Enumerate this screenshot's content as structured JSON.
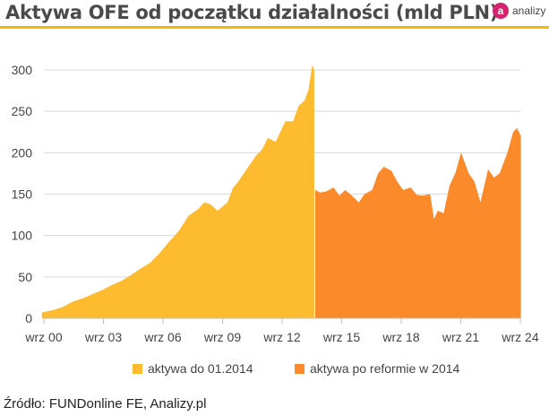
{
  "header": {
    "title": "Aktywa OFE od początku działalności (mld PLN)",
    "logo_letter": "a",
    "logo_text": "analizy"
  },
  "colors": {
    "series1": "#fdbb30",
    "series2": "#fb8a2b",
    "accent_rule": "#f6b800",
    "logo": "#d6246e"
  },
  "chart_data": {
    "type": "area",
    "title": "Aktywa OFE od początku działalności (mld PLN)",
    "xlabel": "",
    "ylabel": "",
    "ylim": [
      0,
      300
    ],
    "yticks": [
      0,
      50,
      100,
      150,
      200,
      250,
      300
    ],
    "x_tick_labels": [
      "wrz 00",
      "wrz 03",
      "wrz 06",
      "wrz 09",
      "wrz 12",
      "wrz 15",
      "wrz 18",
      "wrz 21",
      "wrz 24"
    ],
    "grid": "horizontal",
    "legend_position": "bottom",
    "series": [
      {
        "name": "aktywa do 01.2014",
        "x": [
          1999.9,
          2000.5,
          2001.0,
          2001.5,
          2002.0,
          2002.5,
          2003.0,
          2003.5,
          2004.0,
          2004.5,
          2005.0,
          2005.5,
          2006.0,
          2006.5,
          2007.0,
          2007.5,
          2008.0,
          2008.3,
          2008.6,
          2009.0,
          2009.5,
          2009.8,
          2010.0,
          2010.5,
          2011.0,
          2011.3,
          2011.6,
          2012.0,
          2012.5,
          2012.9,
          2013.2,
          2013.5,
          2013.7,
          2013.9,
          2014.0
        ],
        "values": [
          7,
          10,
          14,
          20,
          24,
          29,
          34,
          40,
          45,
          52,
          60,
          67,
          79,
          93,
          106,
          124,
          132,
          140,
          138,
          130,
          140,
          158,
          163,
          180,
          197,
          204,
          218,
          213,
          238,
          238,
          257,
          263,
          276,
          306,
          300
        ]
      },
      {
        "name": "aktywa po reformie w 2014",
        "x": [
          2014.05,
          2014.3,
          2014.6,
          2015.0,
          2015.3,
          2015.6,
          2016.0,
          2016.3,
          2016.6,
          2017.0,
          2017.3,
          2017.6,
          2018.0,
          2018.3,
          2018.6,
          2019.0,
          2019.3,
          2019.6,
          2020.0,
          2020.2,
          2020.4,
          2020.7,
          2021.0,
          2021.3,
          2021.6,
          2022.0,
          2022.3,
          2022.6,
          2023.0,
          2023.3,
          2023.6,
          2024.0,
          2024.3,
          2024.5,
          2024.7
        ],
        "values": [
          155,
          152,
          153,
          158,
          148,
          155,
          147,
          140,
          150,
          155,
          175,
          183,
          178,
          165,
          155,
          158,
          149,
          148,
          150,
          120,
          130,
          127,
          160,
          175,
          200,
          175,
          165,
          140,
          180,
          170,
          175,
          200,
          225,
          230,
          220
        ]
      }
    ]
  },
  "source": "Źródło: FUNDonline FE, Analizy.pl"
}
